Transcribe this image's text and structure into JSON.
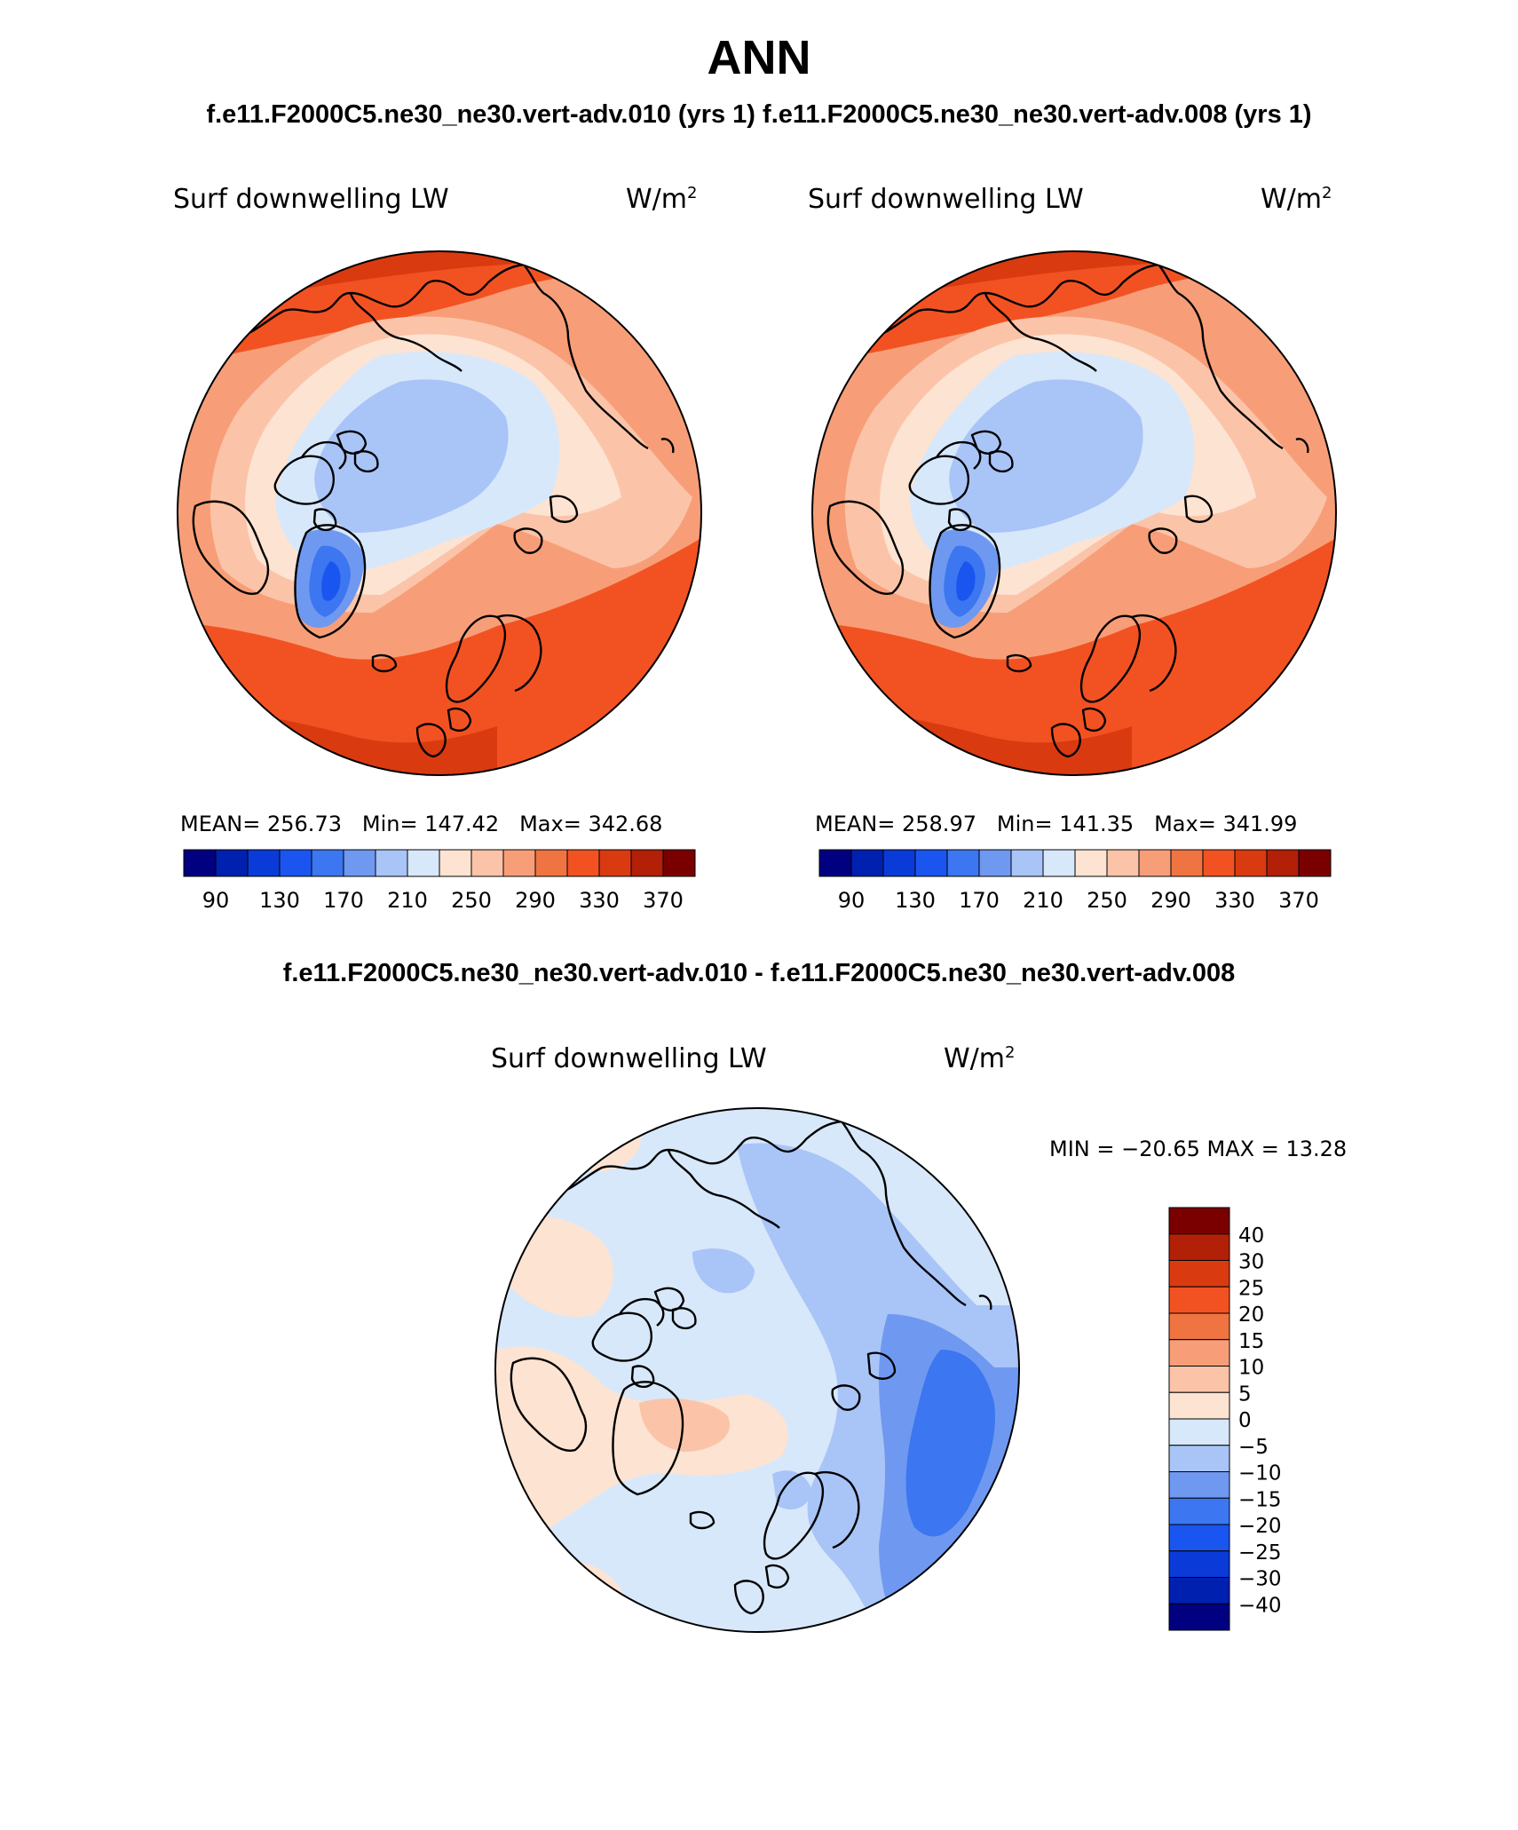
{
  "figure": {
    "title": "ANN",
    "top_subtitle_left": "f.e11.F2000C5.ne30_ne30.vert-adv.010 (yrs 1)",
    "top_subtitle_right": "f.e11.F2000C5.ne30_ne30.vert-adv.008 (yrs 1)",
    "diff_subtitle": "f.e11.F2000C5.ne30_ne30.vert-adv.010 - f.e11.F2000C5.ne30_ne30.vert-adv.008"
  },
  "panels": [
    {
      "variable": "Surf downwelling LW",
      "units": "W/m",
      "units_sup": "2",
      "mean_label": "MEAN=",
      "mean": "256.73",
      "min_label": "Min=",
      "min": "147.42",
      "max_label": "Max=",
      "max": "342.68"
    },
    {
      "variable": "Surf downwelling LW",
      "units": "W/m",
      "units_sup": "2",
      "mean_label": "MEAN=",
      "mean": "258.97",
      "min_label": "Min=",
      "min": "141.35",
      "max_label": "Max=",
      "max": "341.99"
    }
  ],
  "diff_panel": {
    "variable": "Surf downwelling LW",
    "units": "W/m",
    "units_sup": "2",
    "minmax_text": "MIN = −20.65 MAX =   13.28"
  },
  "colorbar_main": {
    "colors": [
      "#000080",
      "#0020b0",
      "#0a3ad8",
      "#1a55f0",
      "#3c76f0",
      "#6f99f0",
      "#a9c4f7",
      "#d7e8fb",
      "#fde3d2",
      "#fbc4a8",
      "#f79e78",
      "#f07442",
      "#f25222",
      "#da3a10",
      "#b22008",
      "#7a0000"
    ],
    "tick_labels": [
      "90",
      "130",
      "170",
      "210",
      "250",
      "290",
      "330",
      "370"
    ]
  },
  "colorbar_diff": {
    "colors": [
      "#7a0000",
      "#b22008",
      "#da3a10",
      "#f25222",
      "#f07442",
      "#f79e78",
      "#fbc4a8",
      "#fde3d2",
      "#d7e8fb",
      "#a9c4f7",
      "#6f99f0",
      "#3c76f0",
      "#1a55f0",
      "#0a3ad8",
      "#0020b0",
      "#000080"
    ],
    "labels": [
      "40",
      "30",
      "25",
      "20",
      "15",
      "10",
      "5",
      "0",
      "−5",
      "−10",
      "−15",
      "−20",
      "−25",
      "−30",
      "−40"
    ]
  },
  "colors": {
    "ocean_warm": "#f25222",
    "ocean_warm_dark": "#da3a10",
    "midlat": "#f79e78",
    "land_light": "#fde3d2",
    "arctic": "#d7e8fb",
    "arctic_core": "#a9c4f7",
    "greenland_1": "#6f99f0",
    "greenland_2": "#3c76f0",
    "greenland_3": "#1a55f0",
    "coast": "#000000",
    "diff_bg": "#d7e8fb",
    "diff_pos": "#fde3d2",
    "diff_pos2": "#fbc4a8",
    "diff_neg": "#a9c4f7",
    "diff_neg2": "#6f99f0",
    "diff_neg3": "#3c76f0"
  }
}
